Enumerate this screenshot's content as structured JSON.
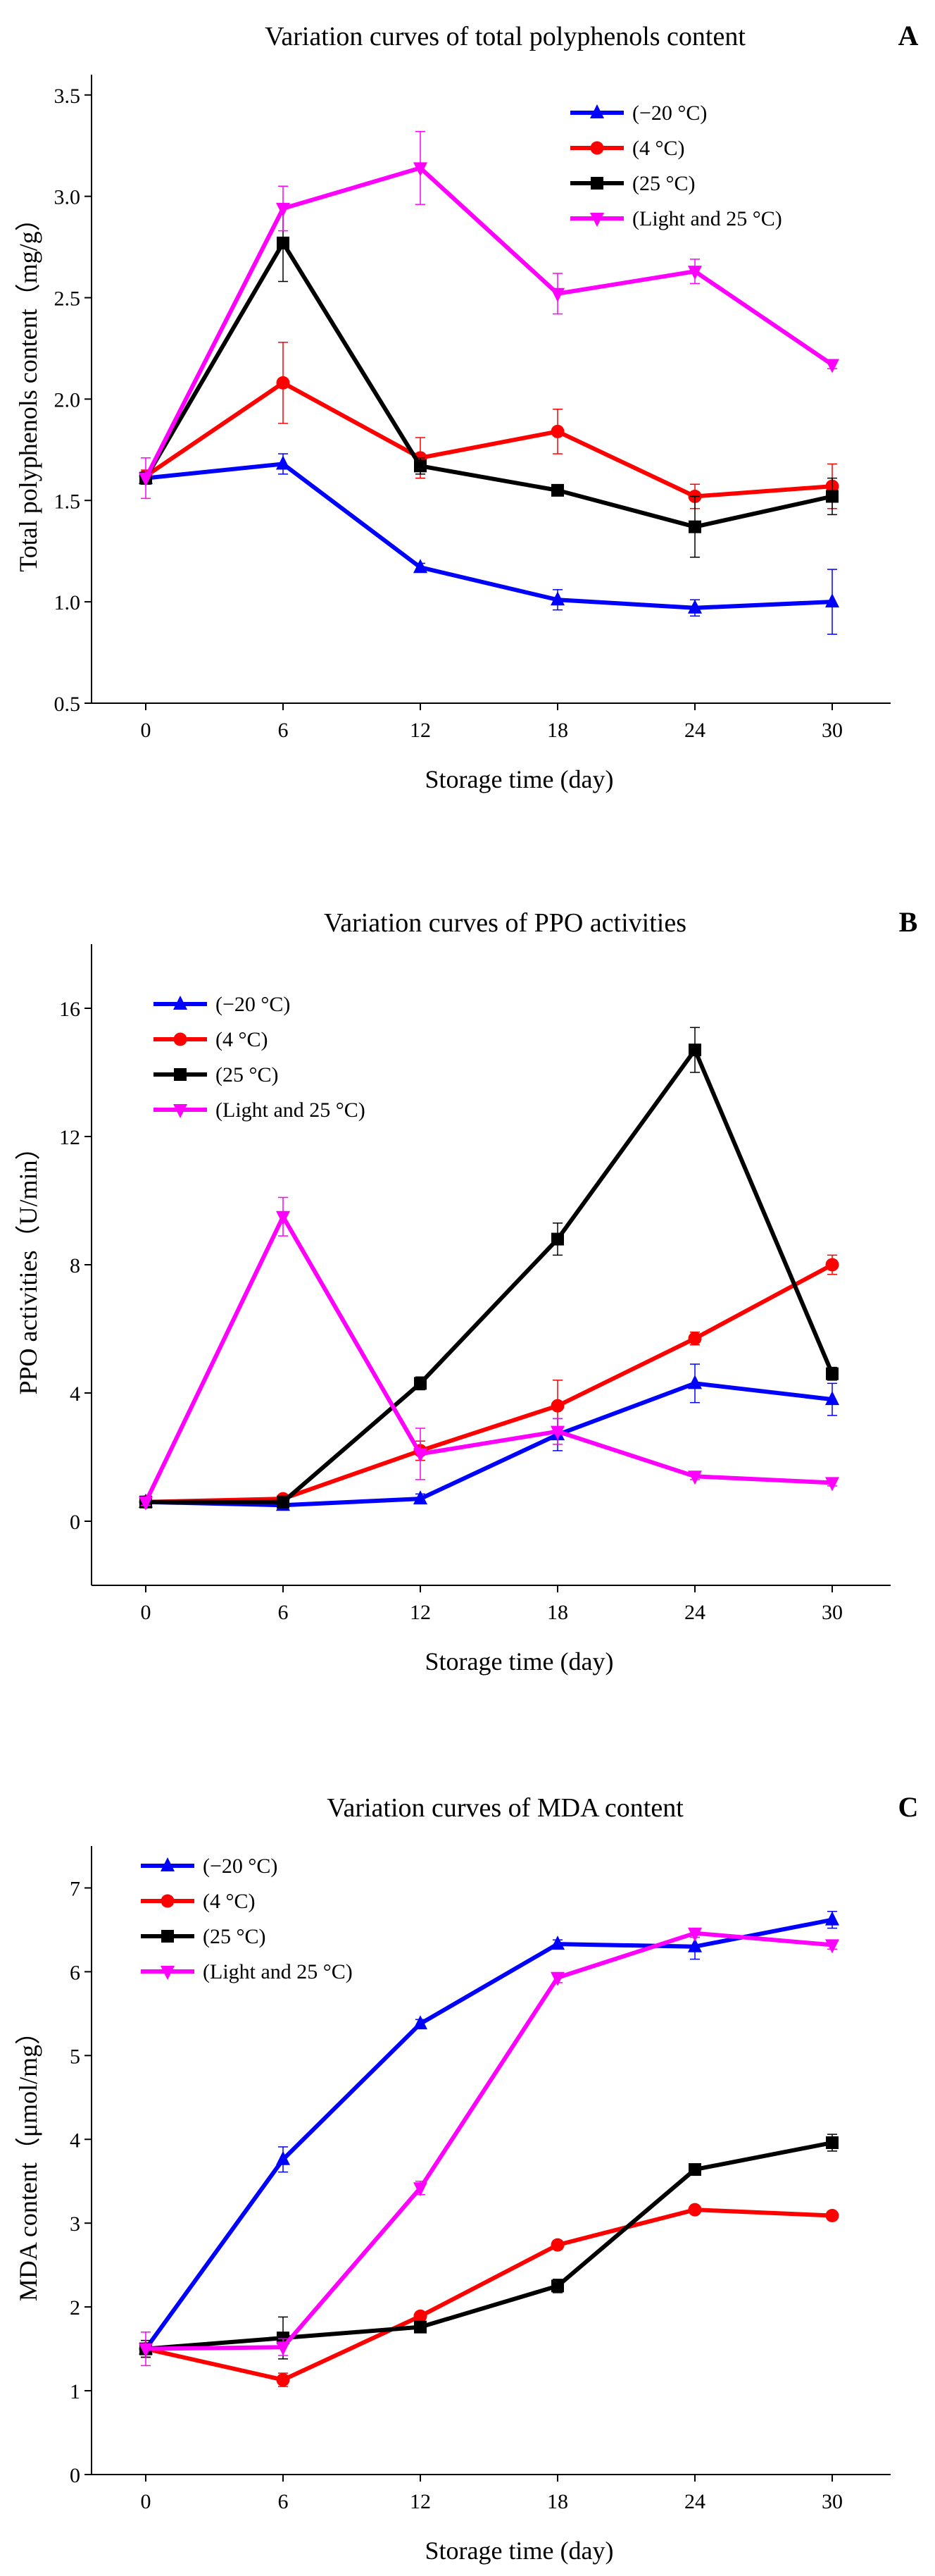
{
  "chart_data": [
    {
      "type": "line",
      "panel_label": "A",
      "title": "Variation curves of total polyphenols content",
      "xlabel": "Storage time (day)",
      "ylabel": "Total polyphenols content（mg/g）",
      "x": [
        0,
        6,
        12,
        18,
        24,
        30
      ],
      "xticks": [
        "0",
        "6",
        "12",
        "18",
        "24",
        "30"
      ],
      "ylim": [
        0.5,
        3.6
      ],
      "yticks": [
        "0.5",
        "1.0",
        "1.5",
        "2.0",
        "2.5",
        "3.0",
        "3.5"
      ],
      "legend_position": "top-right",
      "series": [
        {
          "name": "(−20 °C)",
          "color": "#0000ff",
          "marker": "triangle-up",
          "values": [
            1.61,
            1.68,
            1.17,
            1.01,
            0.97,
            1.0
          ],
          "errors": [
            0.03,
            0.05,
            0.02,
            0.05,
            0.04,
            0.16
          ]
        },
        {
          "name": "(4 °C)",
          "color": "#ff0000",
          "marker": "circle",
          "values": [
            1.62,
            2.08,
            1.71,
            1.84,
            1.52,
            1.57
          ],
          "errors": [
            0.03,
            0.2,
            0.1,
            0.11,
            0.06,
            0.11
          ]
        },
        {
          "name": "(25 °C)",
          "color": "#000000",
          "marker": "square",
          "values": [
            1.61,
            2.77,
            1.67,
            1.55,
            1.37,
            1.52
          ],
          "errors": [
            0.03,
            0.19,
            0.04,
            0.02,
            0.15,
            0.09
          ]
        },
        {
          "name": "(Light and 25 °C)",
          "color": "#ff00ff",
          "marker": "triangle-down",
          "values": [
            1.61,
            2.94,
            3.14,
            2.52,
            2.63,
            2.17
          ],
          "errors": [
            0.1,
            0.11,
            0.18,
            0.1,
            0.06,
            0.02
          ]
        }
      ]
    },
    {
      "type": "line",
      "panel_label": "B",
      "title": "Variation curves of PPO activities",
      "xlabel": "Storage time (day)",
      "ylabel": "PPO activities（U/min）",
      "x": [
        0,
        6,
        12,
        18,
        24,
        30
      ],
      "xticks": [
        "0",
        "6",
        "12",
        "18",
        "24",
        "30"
      ],
      "ylim": [
        -2,
        18
      ],
      "yticks": [
        "0",
        "4",
        "8",
        "12",
        "16"
      ],
      "legend_position": "top-left",
      "series": [
        {
          "name": "(−20 °C)",
          "color": "#0000ff",
          "marker": "triangle-up",
          "values": [
            0.6,
            0.5,
            0.7,
            2.7,
            4.3,
            3.8
          ],
          "errors": [
            0.1,
            0.1,
            0.15,
            0.5,
            0.6,
            0.5
          ]
        },
        {
          "name": "(4 °C)",
          "color": "#ff0000",
          "marker": "circle",
          "values": [
            0.6,
            0.7,
            2.2,
            3.6,
            5.7,
            8.0
          ],
          "errors": [
            0.1,
            0.1,
            0.3,
            0.8,
            0.2,
            0.3
          ]
        },
        {
          "name": "(25 °C)",
          "color": "#000000",
          "marker": "square",
          "values": [
            0.6,
            0.6,
            4.3,
            8.8,
            14.7,
            4.6
          ],
          "errors": [
            0.1,
            0.1,
            0.2,
            0.5,
            0.7,
            0.2
          ]
        },
        {
          "name": "(Light and 25 °C)",
          "color": "#ff00ff",
          "marker": "triangle-down",
          "values": [
            0.6,
            9.5,
            2.1,
            2.8,
            1.4,
            1.2
          ],
          "errors": [
            0.1,
            0.6,
            0.8,
            0.4,
            0.1,
            0.1
          ]
        }
      ]
    },
    {
      "type": "line",
      "panel_label": "C",
      "title": "Variation curves of MDA content",
      "xlabel": "Storage time (day)",
      "ylabel": "MDA content（μmol/mg）",
      "x": [
        0,
        6,
        12,
        18,
        24,
        30
      ],
      "xticks": [
        "0",
        "6",
        "12",
        "18",
        "24",
        "30"
      ],
      "ylim": [
        0,
        7.5
      ],
      "yticks": [
        "0",
        "1",
        "2",
        "3",
        "4",
        "5",
        "6",
        "7"
      ],
      "legend_position": "top-left",
      "series": [
        {
          "name": "(−20 °C)",
          "color": "#0000ff",
          "marker": "triangle-up",
          "values": [
            1.5,
            3.76,
            5.38,
            6.33,
            6.3,
            6.62
          ],
          "errors": [
            0.1,
            0.15,
            0.05,
            0.05,
            0.15,
            0.1
          ]
        },
        {
          "name": "(4 °C)",
          "color": "#ff0000",
          "marker": "circle",
          "values": [
            1.5,
            1.13,
            1.89,
            2.74,
            3.16,
            3.09
          ],
          "errors": [
            0.1,
            0.08,
            0.05,
            0.05,
            0.04,
            0.05
          ]
        },
        {
          "name": "(25 °C)",
          "color": "#000000",
          "marker": "square",
          "values": [
            1.5,
            1.63,
            1.76,
            2.25,
            3.64,
            3.96
          ],
          "errors": [
            0.1,
            0.25,
            0.05,
            0.08,
            0.05,
            0.1
          ]
        },
        {
          "name": "(Light and 25 °C)",
          "color": "#ff00ff",
          "marker": "triangle-down",
          "values": [
            1.5,
            1.52,
            3.42,
            5.93,
            6.46,
            6.32
          ],
          "errors": [
            0.2,
            0.1,
            0.08,
            0.06,
            0.05,
            0.05
          ]
        }
      ]
    }
  ]
}
